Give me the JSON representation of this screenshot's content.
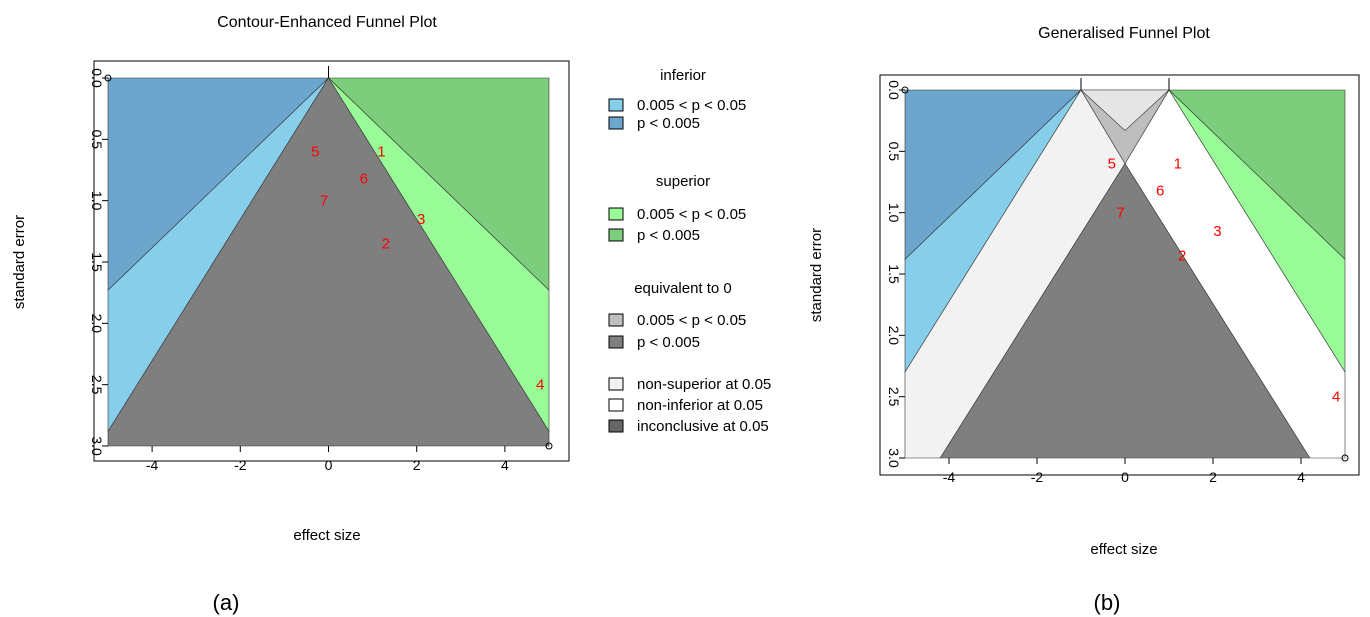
{
  "chart_data": [
    {
      "type": "funnel",
      "title": "Contour-Enhanced Funnel Plot",
      "xlabel": "effect size",
      "ylabel": "standard error",
      "xlim": [
        -5,
        5
      ],
      "ylim": [
        0,
        3
      ],
      "y_reversed": true,
      "xticks": [
        -4,
        -2,
        0,
        2,
        4
      ],
      "yticks": [
        0.0,
        0.5,
        1.0,
        1.5,
        2.0,
        2.5,
        3.0
      ],
      "ytick_labels": [
        "0.0",
        "0.5",
        "1.0",
        "1.5",
        "2.0",
        "2.5",
        "3.0"
      ],
      "top_marks": [
        0
      ],
      "caption": "(a)",
      "studies": [
        {
          "label": "1",
          "x": 1.2,
          "y": 0.6
        },
        {
          "label": "2",
          "x": 1.3,
          "y": 1.35
        },
        {
          "label": "3",
          "x": 2.1,
          "y": 1.15
        },
        {
          "label": "4",
          "x": 4.8,
          "y": 2.5
        },
        {
          "label": "5",
          "x": -0.3,
          "y": 0.6
        },
        {
          "label": "6",
          "x": 0.8,
          "y": 0.82
        },
        {
          "label": "7",
          "x": -0.1,
          "y": 1.0
        }
      ],
      "corner_points": [
        {
          "x": -5,
          "y": 0
        },
        {
          "x": 5,
          "y": 3
        }
      ],
      "legend": {
        "position": "right",
        "groups": [
          {
            "heading": "inferior",
            "items": [
              {
                "label": "0.005 < p < 0.05",
                "color": "#87CEEB"
              },
              {
                "label": "p < 0.005",
                "color": "#6CA6CD"
              }
            ]
          },
          {
            "heading": "superior",
            "items": [
              {
                "label": "0.005 < p < 0.05",
                "color": "#98FB98"
              },
              {
                "label": "p < 0.005",
                "color": "#7CCD7C"
              }
            ]
          },
          {
            "heading": "equivalent to 0",
            "items": [
              {
                "label": "0.005 < p < 0.05",
                "color": "#BEBEBE"
              },
              {
                "label": "p < 0.005",
                "color": "#7F7F7F"
              }
            ]
          },
          {
            "heading": "",
            "items": [
              {
                "label": "non-superior at 0.05",
                "color": "#F2F2F2"
              },
              {
                "label": "non-inferior at 0.05",
                "color": "#FFFFFF"
              },
              {
                "label": "inconclusive at 0.05",
                "color": "#666666"
              }
            ]
          }
        ]
      }
    },
    {
      "type": "funnel",
      "title": "Generalised Funnel Plot",
      "xlabel": "effect size",
      "ylabel": "standard error",
      "xlim": [
        -5,
        5
      ],
      "ylim": [
        0,
        3
      ],
      "y_reversed": true,
      "xticks": [
        -4,
        -2,
        0,
        2,
        4
      ],
      "yticks": [
        0.0,
        0.5,
        1.0,
        1.5,
        2.0,
        2.5,
        3.0
      ],
      "ytick_labels": [
        "0.0",
        "0.5",
        "1.0",
        "1.5",
        "2.0",
        "2.5",
        "3.0"
      ],
      "top_marks": [
        -1,
        1
      ],
      "caption": "(b)",
      "studies": [
        {
          "label": "1",
          "x": 1.2,
          "y": 0.6
        },
        {
          "label": "2",
          "x": 1.3,
          "y": 1.35
        },
        {
          "label": "3",
          "x": 2.1,
          "y": 1.15
        },
        {
          "label": "4",
          "x": 4.8,
          "y": 2.5
        },
        {
          "label": "5",
          "x": -0.3,
          "y": 0.6
        },
        {
          "label": "6",
          "x": 0.8,
          "y": 0.82
        },
        {
          "label": "7",
          "x": -0.1,
          "y": 1.0
        }
      ],
      "corner_points": [
        {
          "x": -5,
          "y": 0
        },
        {
          "x": 5,
          "y": 3
        }
      ]
    }
  ],
  "colors": {
    "inferior_strong": "#6CA6CD",
    "inferior_weak": "#87CEEB",
    "superior_strong": "#7CCD7C",
    "superior_weak": "#98FB98",
    "equiv_strong": "#7F7F7F",
    "equiv_weak": "#BEBEBE",
    "non_superior": "#F2F2F2",
    "non_inferior": "#FFFFFF",
    "equiv_top": "#E5E5E5",
    "study_label": "#FF0000"
  }
}
